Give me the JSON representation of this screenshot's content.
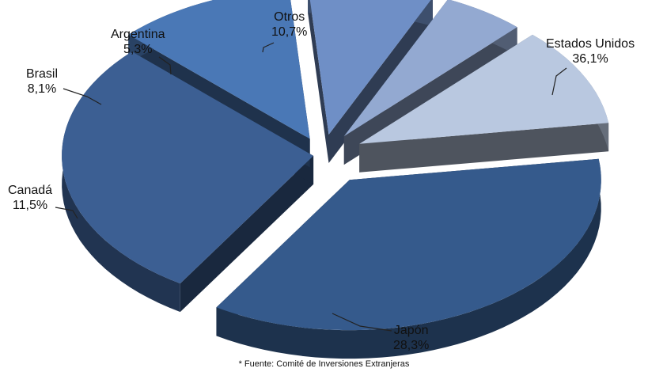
{
  "chart_data": {
    "type": "pie",
    "style": "exploded-3d",
    "slices": [
      {
        "label": "Estados Unidos",
        "value": 36.1,
        "value_text": "36,1%",
        "color": "#355a8c"
      },
      {
        "label": "Japón",
        "value": 28.3,
        "value_text": "28,3%",
        "color": "#3c5f93"
      },
      {
        "label": "Canadá",
        "value": 11.5,
        "value_text": "11,5%",
        "color": "#4a78b6"
      },
      {
        "label": "Brasil",
        "value": 8.1,
        "value_text": "8,1%",
        "color": "#6f8fc6"
      },
      {
        "label": "Argentina",
        "value": 5.3,
        "value_text": "5,3%",
        "color": "#93a9d1"
      },
      {
        "label": "Otros",
        "value": 10.7,
        "value_text": "10,7%",
        "color": "#b9c8e0"
      }
    ],
    "source_note": "* Fuente: Comité de Inversiones Extranjeras"
  }
}
